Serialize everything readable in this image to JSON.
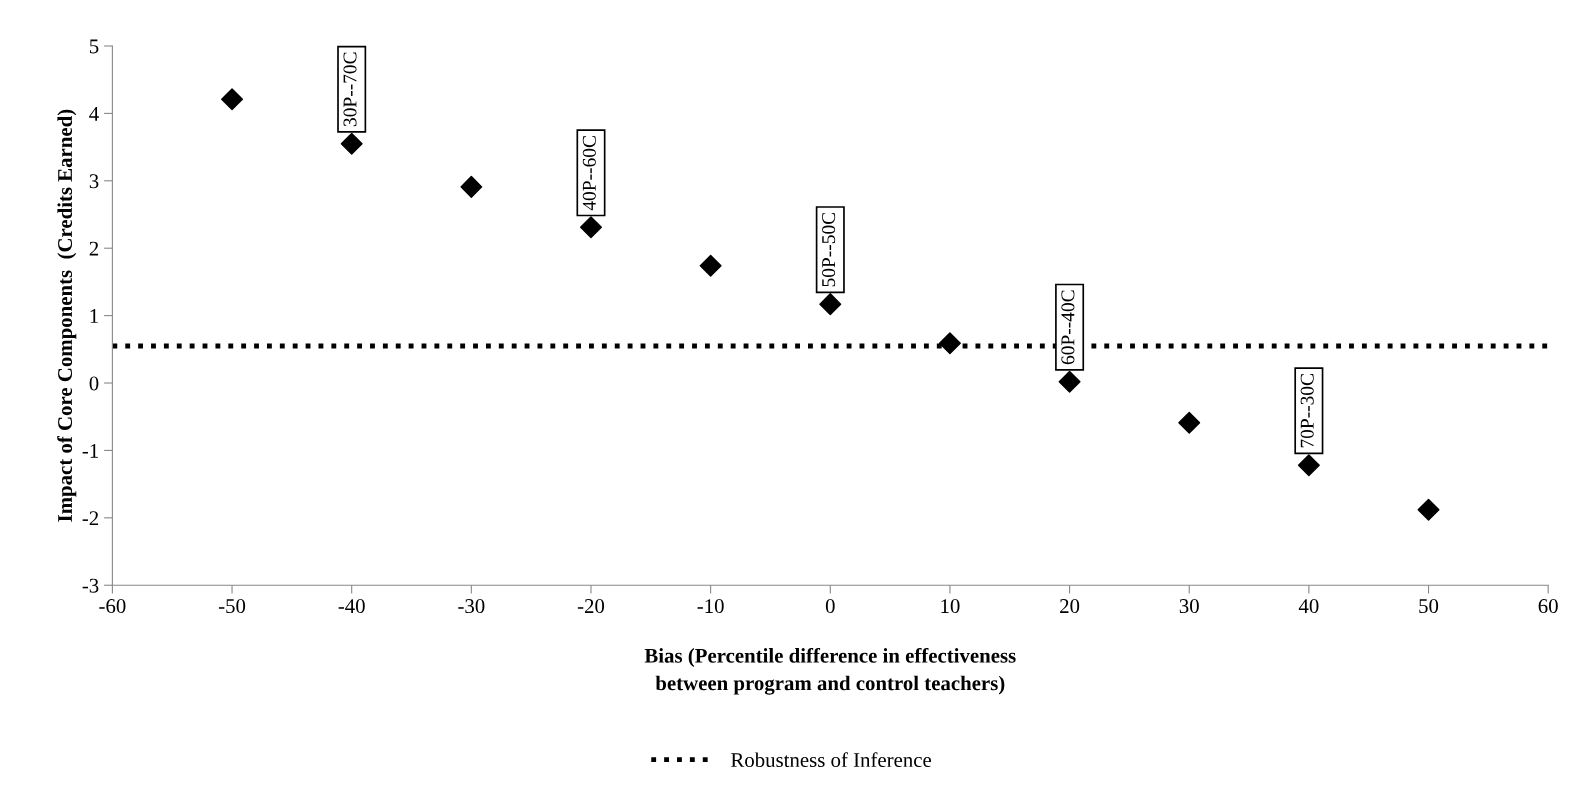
{
  "chart_data": {
    "type": "scatter",
    "xlabel": "Bias (Percentile difference in effectiveness\nbetween program and control teachers)",
    "ylabel": "Impact of Core Components  (Credits Earned)",
    "x": [
      -50,
      -40,
      -30,
      -20,
      -10,
      0,
      10,
      20,
      30,
      40,
      50
    ],
    "series": [
      {
        "color": "#000000",
        "values": [
          4.21,
          3.55,
          2.91,
          2.31,
          1.74,
          1.17,
          0.59,
          0.02,
          -0.59,
          -1.22,
          -1.88
        ]
      }
    ],
    "marker": "diamond",
    "xlim": [
      -60,
      60
    ],
    "xticks": [
      -60,
      -50,
      -40,
      -30,
      -20,
      -10,
      0,
      10,
      20,
      30,
      40,
      50,
      60
    ],
    "ylim": [
      -3,
      5
    ],
    "yticks": [
      -3,
      -2,
      -1,
      0,
      1,
      2,
      3,
      4,
      5
    ],
    "ref_lines": [
      {
        "axis": "y",
        "value": 0.55,
        "label": "Robustness of Inference",
        "color": "#000000",
        "line_style": "dotted"
      }
    ],
    "annotations": [
      {
        "text": "30P--70C",
        "x": -40,
        "y": 3.55
      },
      {
        "text": "40P--60C",
        "x": -20,
        "y": 2.31
      },
      {
        "text": "50P--50C",
        "x": 0,
        "y": 1.17
      },
      {
        "text": "60P--40C",
        "x": 20,
        "y": 0.02
      },
      {
        "text": "70P--30C",
        "x": 40,
        "y": -1.22
      }
    ],
    "grid": false,
    "legend": "bottom"
  }
}
